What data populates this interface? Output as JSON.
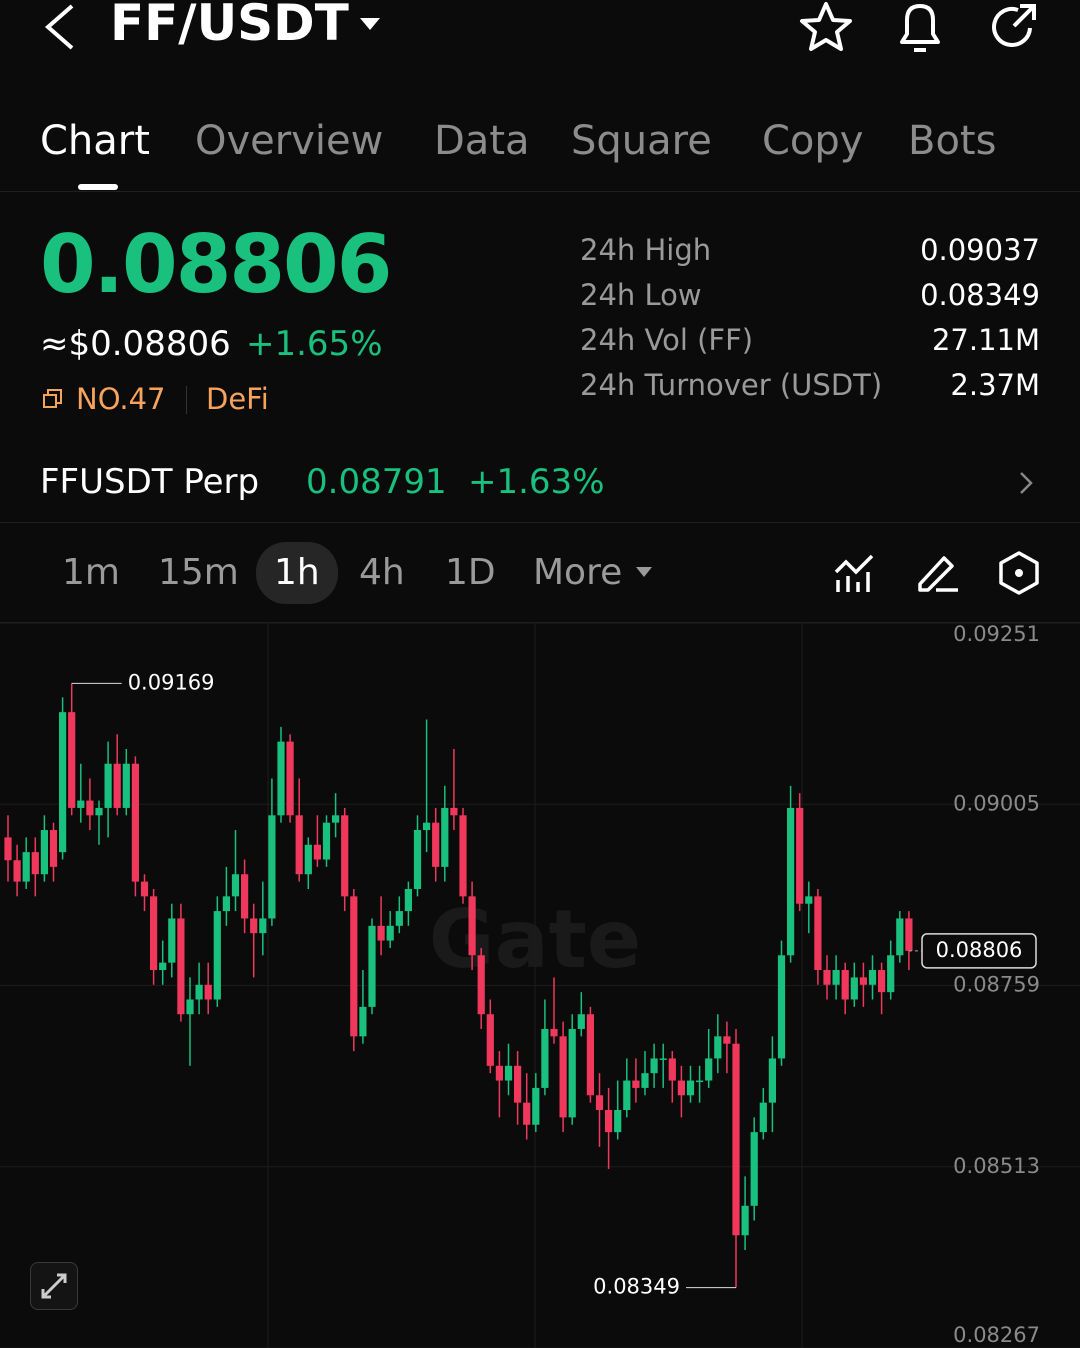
{
  "header": {
    "pair": "FF/USDT"
  },
  "tabs": [
    "Chart",
    "Overview",
    "Data",
    "Square",
    "Copy",
    "Bots"
  ],
  "ticker": {
    "price": "0.08806",
    "usd": "≈$0.08806",
    "change": "+1.65%",
    "rank": "NO.47",
    "sector": "DeFi"
  },
  "stats": [
    {
      "label": "24h  High",
      "value": "0.09037"
    },
    {
      "label": "24h  Low",
      "value": "0.08349"
    },
    {
      "label": "24h  Vol (FF)",
      "value": "27.11M"
    },
    {
      "label": "24h  Turnover (USDT)",
      "value": "2.37M"
    }
  ],
  "perp": {
    "name": "FFUSDT Perp",
    "price": "0.08791",
    "change": "+1.63%"
  },
  "intervals": [
    "1m",
    "15m",
    "1h",
    "4h",
    "1D"
  ],
  "more": "More",
  "chart_data": {
    "type": "candlestick",
    "watermark": "Gate",
    "up_color": "#19c07e",
    "down_color": "#f0385d",
    "grid": true,
    "ylim": [
      0.08267,
      0.09251
    ],
    "yticks": [
      0.08267,
      0.08513,
      0.08759,
      0.09005,
      0.09251
    ],
    "ohlc": [
      [
        0.0896,
        0.0899,
        0.089,
        0.08929
      ],
      [
        0.08929,
        0.0895,
        0.0888,
        0.089
      ],
      [
        0.089,
        0.0896,
        0.0889,
        0.0894
      ],
      [
        0.0894,
        0.0896,
        0.0888,
        0.0891
      ],
      [
        0.0891,
        0.0899,
        0.089,
        0.0897
      ],
      [
        0.0897,
        0.0898,
        0.089,
        0.0892
      ],
      [
        0.0894,
        0.0915,
        0.0893,
        0.0913
      ],
      [
        0.0913,
        0.09169,
        0.0899,
        0.09
      ],
      [
        0.09,
        0.0906,
        0.0898,
        0.0901
      ],
      [
        0.0901,
        0.0904,
        0.0897,
        0.0899
      ],
      [
        0.0899,
        0.0901,
        0.0895,
        0.09
      ],
      [
        0.09,
        0.0909,
        0.0896,
        0.0906
      ],
      [
        0.0906,
        0.091,
        0.0899,
        0.09
      ],
      [
        0.09,
        0.0908,
        0.0899,
        0.0906
      ],
      [
        0.0906,
        0.0907,
        0.0888,
        0.089
      ],
      [
        0.089,
        0.0891,
        0.0886,
        0.0888
      ],
      [
        0.0888,
        0.0889,
        0.0876,
        0.0878
      ],
      [
        0.0878,
        0.0882,
        0.0876,
        0.0879
      ],
      [
        0.0879,
        0.0887,
        0.0877,
        0.0885
      ],
      [
        0.0885,
        0.0887,
        0.0871,
        0.0872
      ],
      [
        0.0872,
        0.0877,
        0.0865,
        0.0874
      ],
      [
        0.0874,
        0.0879,
        0.0872,
        0.0876
      ],
      [
        0.0876,
        0.0879,
        0.0872,
        0.0874
      ],
      [
        0.0874,
        0.0888,
        0.0873,
        0.0886
      ],
      [
        0.0886,
        0.0892,
        0.0884,
        0.0888
      ],
      [
        0.0888,
        0.0897,
        0.0886,
        0.0891
      ],
      [
        0.0891,
        0.0893,
        0.0883,
        0.0885
      ],
      [
        0.0885,
        0.0887,
        0.0877,
        0.0883
      ],
      [
        0.0883,
        0.089,
        0.088,
        0.0885
      ],
      [
        0.0885,
        0.0904,
        0.0884,
        0.0899
      ],
      [
        0.0899,
        0.0911,
        0.0898,
        0.0909
      ],
      [
        0.0909,
        0.091,
        0.0898,
        0.0899
      ],
      [
        0.0899,
        0.0904,
        0.089,
        0.0891
      ],
      [
        0.0891,
        0.0896,
        0.0889,
        0.0895
      ],
      [
        0.0895,
        0.0899,
        0.0892,
        0.0893
      ],
      [
        0.0893,
        0.0899,
        0.0892,
        0.0898
      ],
      [
        0.0898,
        0.0902,
        0.0896,
        0.0899
      ],
      [
        0.0899,
        0.09,
        0.0886,
        0.0888
      ],
      [
        0.0888,
        0.0889,
        0.0867,
        0.0869
      ],
      [
        0.0869,
        0.0878,
        0.0868,
        0.0873
      ],
      [
        0.0873,
        0.0885,
        0.0872,
        0.0884
      ],
      [
        0.0884,
        0.0888,
        0.088,
        0.0882
      ],
      [
        0.0882,
        0.0886,
        0.0881,
        0.0884
      ],
      [
        0.0884,
        0.0888,
        0.0883,
        0.0886
      ],
      [
        0.0886,
        0.089,
        0.0884,
        0.0889
      ],
      [
        0.0889,
        0.0899,
        0.0888,
        0.0897
      ],
      [
        0.0897,
        0.0912,
        0.0894,
        0.0898
      ],
      [
        0.0898,
        0.09,
        0.089,
        0.0892
      ],
      [
        0.0892,
        0.0903,
        0.089,
        0.09
      ],
      [
        0.09,
        0.0908,
        0.0897,
        0.0899
      ],
      [
        0.0899,
        0.09,
        0.0887,
        0.0888
      ],
      [
        0.0888,
        0.089,
        0.0878,
        0.088
      ],
      [
        0.088,
        0.0881,
        0.087,
        0.0872
      ],
      [
        0.0872,
        0.0874,
        0.0864,
        0.0865
      ],
      [
        0.0865,
        0.0867,
        0.0858,
        0.0863
      ],
      [
        0.0863,
        0.0868,
        0.0861,
        0.0865
      ],
      [
        0.0865,
        0.0867,
        0.0857,
        0.086
      ],
      [
        0.086,
        0.0864,
        0.0855,
        0.0857
      ],
      [
        0.0857,
        0.0864,
        0.0856,
        0.0862
      ],
      [
        0.0862,
        0.0874,
        0.0861,
        0.087
      ],
      [
        0.087,
        0.0877,
        0.0868,
        0.0869
      ],
      [
        0.0869,
        0.0871,
        0.0856,
        0.0858
      ],
      [
        0.0858,
        0.0872,
        0.0857,
        0.087
      ],
      [
        0.087,
        0.0875,
        0.0869,
        0.0872
      ],
      [
        0.0872,
        0.0873,
        0.086,
        0.0861
      ],
      [
        0.0861,
        0.0864,
        0.0854,
        0.0859
      ],
      [
        0.0859,
        0.0862,
        0.0851,
        0.0856
      ],
      [
        0.0856,
        0.0863,
        0.0855,
        0.0859
      ],
      [
        0.0859,
        0.0866,
        0.0858,
        0.0863
      ],
      [
        0.0863,
        0.0866,
        0.086,
        0.0862
      ],
      [
        0.0862,
        0.0867,
        0.0861,
        0.0864
      ],
      [
        0.0864,
        0.0868,
        0.0862,
        0.0866
      ],
      [
        0.0866,
        0.0868,
        0.0862,
        0.0866
      ],
      [
        0.0866,
        0.0867,
        0.086,
        0.0863
      ],
      [
        0.0863,
        0.0865,
        0.0858,
        0.0861
      ],
      [
        0.0861,
        0.0865,
        0.086,
        0.0863
      ],
      [
        0.0863,
        0.0865,
        0.086,
        0.0863
      ],
      [
        0.0863,
        0.087,
        0.0862,
        0.0866
      ],
      [
        0.0866,
        0.0872,
        0.0864,
        0.0869
      ],
      [
        0.0869,
        0.0871,
        0.0864,
        0.0868
      ],
      [
        0.0868,
        0.087,
        0.08349,
        0.0842
      ],
      [
        0.0842,
        0.085,
        0.084,
        0.0846
      ],
      [
        0.0846,
        0.0858,
        0.0844,
        0.0856
      ],
      [
        0.0856,
        0.0862,
        0.0855,
        0.086
      ],
      [
        0.086,
        0.0869,
        0.0856,
        0.0866
      ],
      [
        0.0866,
        0.0882,
        0.0865,
        0.088
      ],
      [
        0.088,
        0.0903,
        0.0879,
        0.09
      ],
      [
        0.09,
        0.0902,
        0.0886,
        0.0887
      ],
      [
        0.0887,
        0.089,
        0.0883,
        0.0888
      ],
      [
        0.0888,
        0.0889,
        0.0876,
        0.0878
      ],
      [
        0.0878,
        0.088,
        0.0874,
        0.0876
      ],
      [
        0.0876,
        0.088,
        0.0874,
        0.0878
      ],
      [
        0.0878,
        0.0879,
        0.0872,
        0.0874
      ],
      [
        0.0874,
        0.0879,
        0.0873,
        0.0877
      ],
      [
        0.0877,
        0.0879,
        0.0873,
        0.0876
      ],
      [
        0.0876,
        0.088,
        0.0874,
        0.0878
      ],
      [
        0.0878,
        0.0879,
        0.0872,
        0.0875
      ],
      [
        0.0875,
        0.0882,
        0.0874,
        0.088
      ],
      [
        0.088,
        0.0886,
        0.0879,
        0.0885
      ],
      [
        0.0885,
        0.0886,
        0.0878,
        0.08806
      ]
    ],
    "max_index": 7,
    "min_index": 80
  }
}
